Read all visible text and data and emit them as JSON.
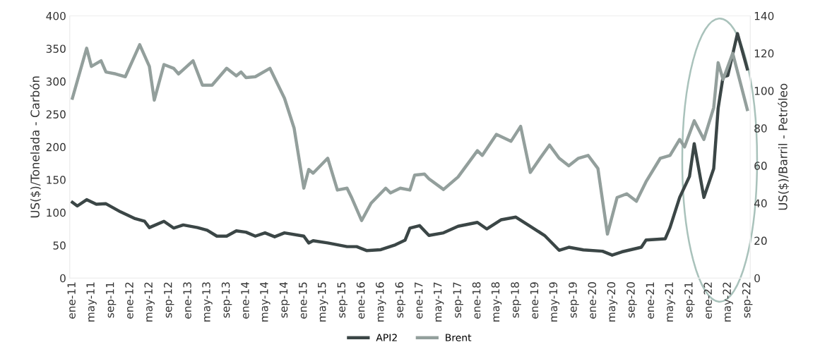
{
  "chart_data": {
    "type": "line",
    "ylabel": "US($)/Tonelada - Carbón",
    "y2label": "US($)/Barril - Petróleo",
    "ylim": [
      0,
      400
    ],
    "yticks": [
      0,
      50,
      100,
      150,
      200,
      250,
      300,
      350,
      400
    ],
    "y2lim": [
      0,
      140
    ],
    "y2ticks": [
      0,
      20,
      40,
      60,
      80,
      100,
      120,
      140
    ],
    "xlim": [
      "2010-12-15",
      "2022-09-20"
    ],
    "xticks": [
      {
        "value": "2011-01",
        "label": "ene-11"
      },
      {
        "value": "2011-05",
        "label": "may-11"
      },
      {
        "value": "2011-09",
        "label": "sep-11"
      },
      {
        "value": "2012-01",
        "label": "ene-12"
      },
      {
        "value": "2012-05",
        "label": "may-12"
      },
      {
        "value": "2012-09",
        "label": "sep-12"
      },
      {
        "value": "2013-01",
        "label": "ene-13"
      },
      {
        "value": "2013-05",
        "label": "may-13"
      },
      {
        "value": "2013-09",
        "label": "sep-13"
      },
      {
        "value": "2014-01",
        "label": "ene-14"
      },
      {
        "value": "2014-05",
        "label": "may-14"
      },
      {
        "value": "2014-09",
        "label": "sep-14"
      },
      {
        "value": "2015-01",
        "label": "ene-15"
      },
      {
        "value": "2015-05",
        "label": "may-15"
      },
      {
        "value": "2015-09",
        "label": "sep-15"
      },
      {
        "value": "2016-01",
        "label": "ene-16"
      },
      {
        "value": "2016-05",
        "label": "may-16"
      },
      {
        "value": "2016-09",
        "label": "sep-16"
      },
      {
        "value": "2017-01",
        "label": "ene-17"
      },
      {
        "value": "2017-05",
        "label": "may-17"
      },
      {
        "value": "2017-09",
        "label": "sep-17"
      },
      {
        "value": "2018-01",
        "label": "ene-18"
      },
      {
        "value": "2018-05",
        "label": "may-18"
      },
      {
        "value": "2018-09",
        "label": "sep-18"
      },
      {
        "value": "2019-01",
        "label": "ene-19"
      },
      {
        "value": "2019-05",
        "label": "may-19"
      },
      {
        "value": "2019-09",
        "label": "sep-19"
      },
      {
        "value": "2020-01",
        "label": "ene-20"
      },
      {
        "value": "2020-05",
        "label": "may-20"
      },
      {
        "value": "2020-09",
        "label": "sep-20"
      },
      {
        "value": "2021-01",
        "label": "ene-21"
      },
      {
        "value": "2021-05",
        "label": "may-21"
      },
      {
        "value": "2021-09",
        "label": "sep-21"
      },
      {
        "value": "2022-01",
        "label": "ene-22"
      },
      {
        "value": "2022-05",
        "label": "may-22"
      },
      {
        "value": "2022-09",
        "label": "sep-22"
      }
    ],
    "grid": false,
    "legend": "bottom",
    "marker": "none",
    "line_style": "solid",
    "series": [
      {
        "name": "API2",
        "color": "#3b4646",
        "x": [
          "2011-01",
          "2011-02",
          "2011-04",
          "2011-06",
          "2011-08",
          "2011-11",
          "2012-02",
          "2012-04",
          "2012-05",
          "2012-08",
          "2012-10",
          "2012-12",
          "2013-03",
          "2013-05",
          "2013-07",
          "2013-09",
          "2013-11",
          "2014-01",
          "2014-03",
          "2014-05",
          "2014-07",
          "2014-09",
          "2015-01",
          "2015-02",
          "2015-03",
          "2015-06",
          "2015-10",
          "2015-12",
          "2016-02",
          "2016-05",
          "2016-08",
          "2016-10",
          "2016-11",
          "2017-01",
          "2017-03",
          "2017-06",
          "2017-09",
          "2018-01",
          "2018-03",
          "2018-06",
          "2018-09",
          "2018-12",
          "2019-03",
          "2019-06",
          "2019-08",
          "2019-11",
          "2020-03",
          "2020-05",
          "2020-07",
          "2020-11",
          "2020-12",
          "2021-04",
          "2021-05",
          "2021-07",
          "2021-09",
          "2021-10",
          "2021-12",
          "2022-02",
          "2022-03",
          "2022-04",
          "2022-05",
          "2022-07",
          "2022-09"
        ],
        "values": [
          115.5,
          110,
          119.6,
          112.6,
          113.4,
          101,
          90.7,
          86.6,
          77,
          86.6,
          76.3,
          81,
          77,
          73,
          64,
          64,
          72,
          70,
          64,
          69,
          63,
          69,
          64,
          53.6,
          57,
          53.6,
          48,
          48,
          42,
          43.3,
          50.7,
          57.7,
          76.3,
          80,
          65,
          69,
          79,
          85,
          75,
          89,
          93,
          79,
          65,
          42.4,
          47,
          43,
          41,
          35,
          40,
          47,
          58,
          60,
          77,
          123,
          155,
          205,
          123,
          167,
          259,
          307,
          309,
          373,
          319
        ]
      },
      {
        "name": "Brent",
        "color": "#939f9c",
        "axis": "y2",
        "x": [
          "2011-01",
          "2011-04",
          "2011-05",
          "2011-07",
          "2011-08",
          "2011-10",
          "2011-12",
          "2012-03",
          "2012-05",
          "2012-06",
          "2012-08",
          "2012-10",
          "2012-11",
          "2013-02",
          "2013-04",
          "2013-06",
          "2013-09",
          "2013-11",
          "2013-12",
          "2014-01",
          "2014-03",
          "2014-06",
          "2014-09",
          "2014-11",
          "2015-01",
          "2015-02",
          "2015-03",
          "2015-06",
          "2015-08",
          "2015-10",
          "2015-11",
          "2016-01",
          "2016-03",
          "2016-06",
          "2016-07",
          "2016-09",
          "2016-11",
          "2016-12",
          "2017-02",
          "2017-03",
          "2017-06",
          "2017-09",
          "2018-01",
          "2018-02",
          "2018-05",
          "2018-08",
          "2018-10",
          "2018-12",
          "2019-02",
          "2019-04",
          "2019-06",
          "2019-08",
          "2019-10",
          "2019-12",
          "2020-02",
          "2020-04",
          "2020-06",
          "2020-08",
          "2020-10",
          "2020-12",
          "2021-03",
          "2021-05",
          "2021-07",
          "2021-08",
          "2021-10",
          "2021-12",
          "2022-02",
          "2022-03",
          "2022-04",
          "2022-06",
          "2022-09"
        ],
        "values": [
          96,
          122.7,
          113,
          116,
          110,
          109,
          107.5,
          124.6,
          113,
          95,
          114,
          112,
          109,
          116,
          103,
          103,
          112,
          108,
          110,
          107,
          107.5,
          112,
          96,
          80,
          48,
          58,
          56,
          64,
          47,
          48,
          42.6,
          30.7,
          40,
          48,
          45.5,
          48,
          47,
          55,
          55.5,
          53,
          47.3,
          54,
          68,
          65.5,
          76.7,
          73,
          81,
          56.4,
          64,
          71,
          64,
          60,
          64,
          65.5,
          58.5,
          23.5,
          43,
          45,
          41,
          51.5,
          64,
          65.5,
          74,
          70,
          84,
          74,
          91,
          115,
          106,
          120,
          90
        ]
      }
    ]
  }
}
